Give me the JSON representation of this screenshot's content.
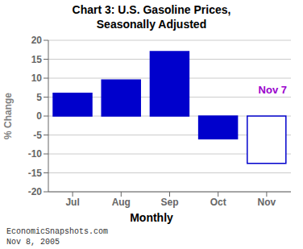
{
  "chart_data": {
    "type": "bar",
    "title": "Chart 3: U.S. Gasoline Prices,\nSeasonally Adjusted",
    "categories": [
      "Jul",
      "Aug",
      "Sep",
      "Oct",
      "Nov"
    ],
    "values": [
      6.0,
      9.5,
      17.0,
      -6.0,
      -12.5
    ],
    "color": "#0000CC",
    "colors": [
      "#0000CC",
      "#0000CC",
      "#0000CC",
      "#0000CC",
      "none"
    ],
    "ylabel": "% Change",
    "xlabel": "Monthly",
    "ylim": [
      -20,
      20
    ],
    "yticks": [
      -20,
      -15,
      -10,
      -5,
      0,
      5,
      10,
      15,
      20
    ],
    "grid": true,
    "annotations": [
      {
        "text": "Nov 7",
        "color": "#9900CC"
      },
      {
        "text": "EconomicSnapshots.com"
      },
      {
        "text": "Nov 8, 2005"
      }
    ]
  }
}
